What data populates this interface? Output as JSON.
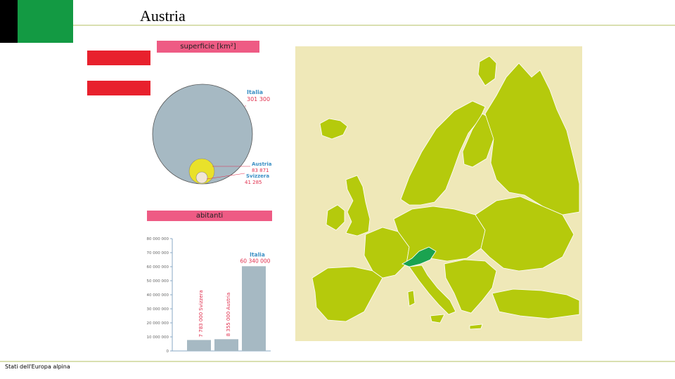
{
  "slide": {
    "title": "Austria",
    "footer": "Stati dell'Europa alpina"
  },
  "colors": {
    "flag_red": "#e8212d",
    "flag_white": "#ffffff",
    "accent_pink": "#ee5b84",
    "circle_blue": "#a6b9c3",
    "austria_yellow": "#e9e12a",
    "label_blue": "#3a8fc4",
    "label_red": "#e0304e",
    "map_bg": "#efe8b8",
    "map_land": "#b5ca0c",
    "map_highlight": "#1aa350"
  },
  "area_chart": {
    "header": "superficie [km²]",
    "items": [
      {
        "name": "Italia",
        "value_label": "301 300",
        "value": 301300
      },
      {
        "name": "Austria",
        "value_label": "83 871",
        "value": 83871
      },
      {
        "name": "Svizzera",
        "value_label": "41 285",
        "value": 41285
      }
    ]
  },
  "chart_data": {
    "type": "bar",
    "title": "abitanti",
    "categories": [
      "Svizzera",
      "Austria",
      "Italia"
    ],
    "values": [
      7783000,
      8355000,
      60340000
    ],
    "data_labels": [
      "7 783 000 Svizzera",
      "8 355 000 Austria",
      "60 340 000"
    ],
    "category_label_italia": "Italia",
    "ylim": [
      0,
      80000000
    ],
    "yticks": [
      0,
      10000000,
      20000000,
      30000000,
      40000000,
      50000000,
      60000000,
      70000000,
      80000000
    ],
    "ytick_labels": [
      "0",
      "10 000 000",
      "20 000 000",
      "30 000 000",
      "40 000 000",
      "50 000 000",
      "60 000 000",
      "70 000 000",
      "80 000 000"
    ],
    "grid": false
  },
  "map": {
    "highlight_country": "Austria"
  }
}
